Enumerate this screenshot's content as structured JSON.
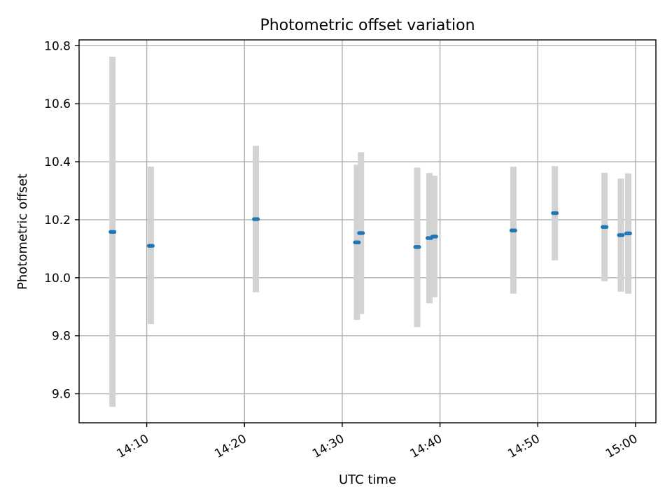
{
  "chart_data": {
    "type": "scatter",
    "title": "Photometric offset variation",
    "xlabel": "UTC time",
    "ylabel": "Photometric offset",
    "xlim": [
      "14:03:05",
      "15:02:05"
    ],
    "ylim": [
      9.5,
      10.82
    ],
    "grid": true,
    "x_ticks": [
      "14:10",
      "14:20",
      "14:30",
      "14:40",
      "14:50",
      "15:00"
    ],
    "y_ticks": [
      "9.6",
      "9.8",
      "10.0",
      "10.2",
      "10.4",
      "10.6",
      "10.8"
    ],
    "colors": {
      "point": "#1f77b4",
      "errorbar": "#d3d3d3"
    },
    "points": [
      {
        "time": "14:06:30",
        "value": 10.158,
        "low": 9.555,
        "high": 10.762
      },
      {
        "time": "14:10:25",
        "value": 10.11,
        "low": 9.84,
        "high": 10.383
      },
      {
        "time": "14:21:10",
        "value": 10.202,
        "low": 9.95,
        "high": 10.455
      },
      {
        "time": "14:31:30",
        "value": 10.122,
        "low": 9.855,
        "high": 10.39
      },
      {
        "time": "14:31:55",
        "value": 10.154,
        "low": 9.875,
        "high": 10.433
      },
      {
        "time": "14:37:40",
        "value": 10.106,
        "low": 9.83,
        "high": 10.38
      },
      {
        "time": "14:38:55",
        "value": 10.137,
        "low": 9.912,
        "high": 10.361
      },
      {
        "time": "14:39:25",
        "value": 10.142,
        "low": 9.933,
        "high": 10.352
      },
      {
        "time": "14:47:30",
        "value": 10.163,
        "low": 9.945,
        "high": 10.383
      },
      {
        "time": "14:51:45",
        "value": 10.223,
        "low": 10.06,
        "high": 10.385
      },
      {
        "time": "14:56:50",
        "value": 10.175,
        "low": 9.988,
        "high": 10.362
      },
      {
        "time": "14:58:30",
        "value": 10.147,
        "low": 9.952,
        "high": 10.342
      },
      {
        "time": "14:59:15",
        "value": 10.153,
        "low": 9.945,
        "high": 10.36
      }
    ]
  }
}
